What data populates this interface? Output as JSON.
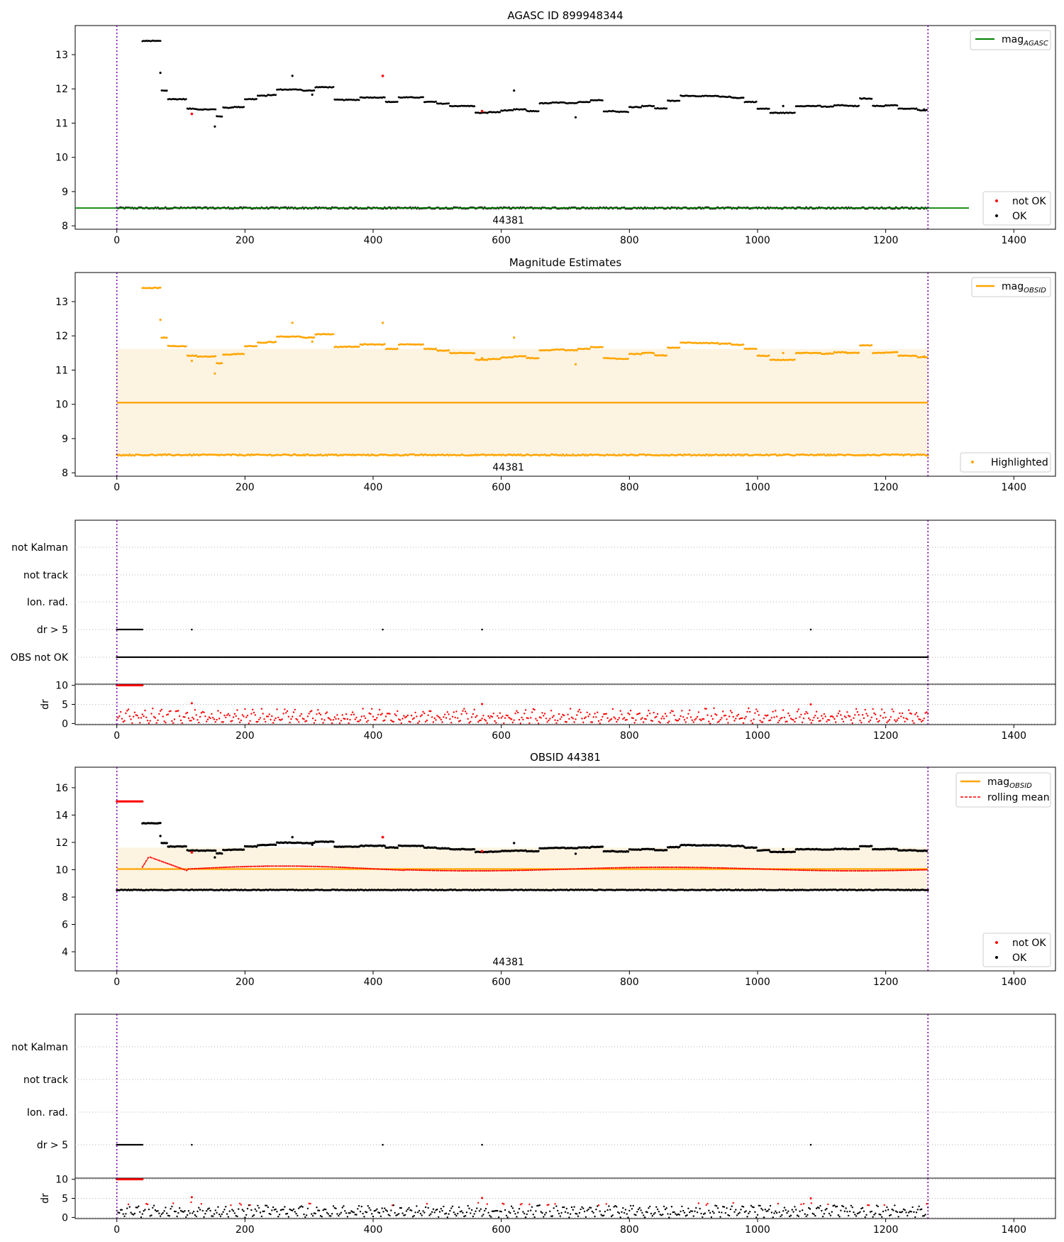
{
  "figure": {
    "colors": {
      "ok": "#000000",
      "not_ok": "#ff0000",
      "agasc_line": "#008000",
      "obsid": "#ffa500",
      "band_fill": "#fdf3e1",
      "rolling": "#ff0000",
      "obsid_marker": "#7b00a8",
      "grid": "#b0b0b0"
    },
    "obsid_label": "44381"
  },
  "chart_data": [
    {
      "id": "agasc",
      "type": "scatter",
      "title": "AGASC ID 899948344",
      "xlabel": "",
      "ylabel": "",
      "xlim": [
        -65,
        1465
      ],
      "ylim": [
        7.9,
        13.85
      ],
      "xticks": [
        0,
        200,
        400,
        600,
        800,
        1000,
        1200,
        1400
      ],
      "yticks": [
        8,
        9,
        10,
        11,
        12,
        13
      ],
      "obsid_bounds": [
        0,
        1266
      ],
      "mag_agasc": 8.52,
      "mag_agasc_xrange": [
        -65,
        1330
      ],
      "legend_lines": [
        {
          "label": "mag",
          "sub": "AGASC"
        }
      ],
      "legend_points": [
        {
          "label": "not OK"
        },
        {
          "label": "OK"
        }
      ],
      "obsid_label": "44381"
    },
    {
      "id": "estimates",
      "type": "scatter",
      "title": "Magnitude Estimates",
      "xlabel": "",
      "ylabel": "",
      "xlim": [
        -65,
        1465
      ],
      "ylim": [
        7.9,
        13.85
      ],
      "xticks": [
        0,
        200,
        400,
        600,
        800,
        1000,
        1200,
        1400
      ],
      "yticks": [
        8,
        9,
        10,
        11,
        12,
        13
      ],
      "obsid_bounds": [
        0,
        1266
      ],
      "mag_obsid": 10.05,
      "band": [
        8.52,
        11.62
      ],
      "legend_lines": [
        {
          "label": "mag",
          "sub": "OBSID"
        }
      ],
      "legend_points": [
        {
          "label": "Highlighted"
        }
      ],
      "obsid_label": "44381"
    },
    {
      "id": "flags1",
      "type": "scatter",
      "title": "",
      "xlim": [
        -65,
        1465
      ],
      "categories": [
        "not Kalman",
        "not track",
        "Ion. rad.",
        "dr > 5",
        "OBS not OK"
      ],
      "xticks": [
        0,
        200,
        400,
        600,
        800,
        1000,
        1200,
        1400
      ],
      "dr_range": [
        0,
        40
      ],
      "dr_x": [
        117,
        415,
        570,
        1083
      ],
      "obs_not_ok_range": [
        0,
        1266
      ],
      "dr_ylabel": "dr",
      "dr_yticks": [
        0,
        5,
        10
      ],
      "dr_ylim": [
        -0.3,
        10.3
      ],
      "obsid_bounds": [
        0,
        1266
      ]
    },
    {
      "id": "obsid",
      "type": "scatter",
      "title": "OBSID 44381",
      "xlim": [
        -65,
        1465
      ],
      "ylim": [
        2.6,
        17.5
      ],
      "xticks": [
        0,
        200,
        400,
        600,
        800,
        1000,
        1200,
        1400
      ],
      "yticks": [
        4,
        6,
        8,
        10,
        12,
        14,
        16
      ],
      "obsid_bounds": [
        0,
        1266
      ],
      "mag_obsid": 10.05,
      "band": [
        8.52,
        11.62
      ],
      "not_ok_value": 15.0,
      "legend_lines": [
        {
          "label": "mag",
          "sub": "OBSID"
        },
        {
          "label": "rolling mean"
        }
      ],
      "legend_points": [
        {
          "label": "not OK"
        },
        {
          "label": "OK"
        }
      ],
      "obsid_label": "44381"
    },
    {
      "id": "flags2",
      "type": "scatter",
      "title": "",
      "xlim": [
        -65,
        1465
      ],
      "categories": [
        "not Kalman",
        "not track",
        "Ion. rad.",
        "dr > 5"
      ],
      "xticks": [
        0,
        200,
        400,
        600,
        800,
        1000,
        1200,
        1400
      ],
      "dr_range": [
        0,
        40
      ],
      "dr_x": [
        117,
        415,
        570,
        1083
      ],
      "dr_ylabel": "dr",
      "dr_yticks": [
        0,
        5,
        10
      ],
      "dr_ylim": [
        -0.3,
        10.3
      ],
      "obsid_bounds": [
        0,
        1266
      ]
    }
  ],
  "mag_series": {
    "step": 2,
    "segments": [
      [
        40,
        70,
        13.4
      ],
      [
        70,
        80,
        11.95
      ],
      [
        80,
        110,
        11.7
      ],
      [
        110,
        125,
        11.42
      ],
      [
        125,
        155,
        11.4
      ],
      [
        155,
        165,
        11.2
      ],
      [
        165,
        180,
        11.45
      ],
      [
        180,
        200,
        11.47
      ],
      [
        200,
        220,
        11.7
      ],
      [
        220,
        235,
        11.8
      ],
      [
        235,
        250,
        11.82
      ],
      [
        250,
        290,
        11.98
      ],
      [
        290,
        310,
        11.95
      ],
      [
        310,
        340,
        12.05
      ],
      [
        340,
        380,
        11.68
      ],
      [
        380,
        420,
        11.75
      ],
      [
        420,
        440,
        11.62
      ],
      [
        440,
        480,
        11.75
      ],
      [
        480,
        500,
        11.62
      ],
      [
        500,
        520,
        11.57
      ],
      [
        520,
        560,
        11.5
      ],
      [
        560,
        580,
        11.3
      ],
      [
        580,
        600,
        11.32
      ],
      [
        600,
        620,
        11.37
      ],
      [
        620,
        640,
        11.4
      ],
      [
        640,
        660,
        11.35
      ],
      [
        660,
        680,
        11.58
      ],
      [
        680,
        700,
        11.6
      ],
      [
        700,
        720,
        11.58
      ],
      [
        720,
        740,
        11.62
      ],
      [
        740,
        760,
        11.67
      ],
      [
        760,
        780,
        11.35
      ],
      [
        780,
        800,
        11.33
      ],
      [
        800,
        820,
        11.47
      ],
      [
        820,
        840,
        11.5
      ],
      [
        840,
        860,
        11.43
      ],
      [
        860,
        880,
        11.65
      ],
      [
        880,
        900,
        11.8
      ],
      [
        900,
        940,
        11.79
      ],
      [
        940,
        960,
        11.77
      ],
      [
        960,
        980,
        11.74
      ],
      [
        980,
        1000,
        11.62
      ],
      [
        1000,
        1020,
        11.42
      ],
      [
        1020,
        1040,
        11.3
      ],
      [
        1040,
        1060,
        11.3
      ],
      [
        1060,
        1080,
        11.5
      ],
      [
        1080,
        1100,
        11.5
      ],
      [
        1100,
        1120,
        11.48
      ],
      [
        1120,
        1140,
        11.52
      ],
      [
        1140,
        1160,
        11.5
      ],
      [
        1160,
        1180,
        11.72
      ],
      [
        1180,
        1200,
        11.5
      ],
      [
        1200,
        1220,
        11.52
      ],
      [
        1220,
        1250,
        11.42
      ],
      [
        1250,
        1266,
        11.38
      ]
    ],
    "outliers_ok": [
      [
        68,
        12.47
      ],
      [
        153,
        10.9
      ],
      [
        274,
        12.38
      ],
      [
        305,
        11.83
      ],
      [
        620,
        11.95
      ],
      [
        716,
        11.17
      ],
      [
        1040,
        11.5
      ],
      [
        1260,
        11.4
      ]
    ],
    "outliers_not_ok": [
      [
        117,
        11.27
      ],
      [
        415,
        12.38
      ],
      [
        570,
        11.35
      ]
    ],
    "low_value": 8.52,
    "early_not_ok_range": [
      0,
      40
    ],
    "rolling_peak": [
      50,
      10.95
    ]
  }
}
